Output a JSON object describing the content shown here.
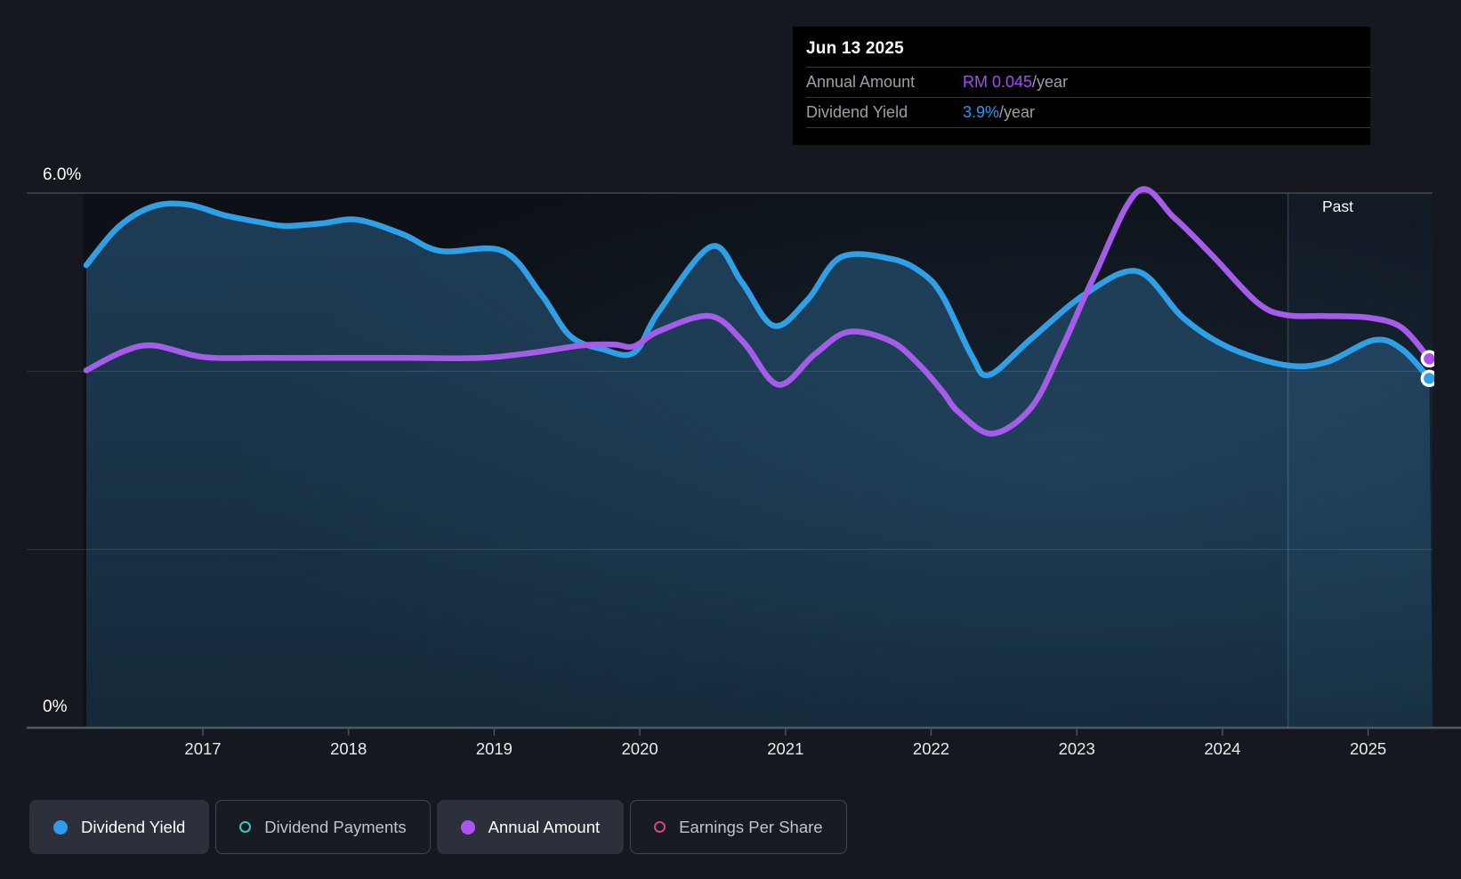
{
  "tooltip": {
    "date": "Jun 13 2025",
    "rows": [
      {
        "label": "Annual Amount",
        "value": "RM 0.045",
        "suffix": "/year"
      },
      {
        "label": "Dividend Yield",
        "value": "3.9%",
        "suffix": "/year"
      }
    ]
  },
  "chart": {
    "past_label": "Past",
    "y_top_label": "6.0%",
    "y_bottom_label": "0%"
  },
  "legend": {
    "items": [
      {
        "label": "Dividend Yield",
        "color": "#2e9ce8",
        "style": "filled-dot",
        "active": true
      },
      {
        "label": "Dividend Payments",
        "color": "#3fc8bc",
        "style": "outline-ring",
        "active": false
      },
      {
        "label": "Annual Amount",
        "color": "#ae54f0",
        "style": "filled-dot",
        "active": true
      },
      {
        "label": "Earnings Per Share",
        "color": "#d6467e",
        "style": "outline-ring",
        "active": false
      }
    ]
  },
  "colors": {
    "background": "#15181e",
    "plot_background": "#0d1117",
    "dividend_yield_line": "#2f9fe6",
    "annual_amount_line": "#a55ce8",
    "annual_amount_marker": "#b44df0",
    "area_fill_top": "#1e3d56",
    "area_fill_bottom": "#142939",
    "gridline_major": "#43474e",
    "gridline_minor": "rgba(255,255,255,0.13)",
    "axis_line": "#54585f",
    "tick_color": "#4c5058",
    "axis_text": "#e8eaed",
    "past_divider": "rgba(150,190,230,0.22)",
    "past_overlay": "rgba(96,160,215,0.055)",
    "glow": "rgba(70,135,190,0.14)"
  },
  "chart_data": {
    "type": "area",
    "title": "Dividend history (yield and annual amount over time)",
    "x_ticks": [
      2017,
      2018,
      2019,
      2020,
      2021,
      2022,
      2023,
      2024,
      2025
    ],
    "x_range": [
      2016.2,
      2025.44
    ],
    "y_axis": {
      "min": 0,
      "max": 6,
      "unit": "%",
      "gridlines_pct": [
        0,
        2,
        4,
        6
      ]
    },
    "grid": true,
    "legend_position": "bottom",
    "past_region_start": 2024.45,
    "series": [
      {
        "name": "Dividend Yield",
        "unit": "%",
        "current_label": "3.9%/year",
        "points": [
          [
            2016.2,
            5.19
          ],
          [
            2016.42,
            5.62
          ],
          [
            2016.66,
            5.85
          ],
          [
            2016.9,
            5.87
          ],
          [
            2017.15,
            5.75
          ],
          [
            2017.4,
            5.67
          ],
          [
            2017.57,
            5.63
          ],
          [
            2017.82,
            5.66
          ],
          [
            2018.06,
            5.7
          ],
          [
            2018.37,
            5.54
          ],
          [
            2018.63,
            5.35
          ],
          [
            2019.06,
            5.35
          ],
          [
            2019.32,
            4.87
          ],
          [
            2019.52,
            4.4
          ],
          [
            2019.74,
            4.25
          ],
          [
            2019.96,
            4.21
          ],
          [
            2020.13,
            4.67
          ],
          [
            2020.49,
            5.4
          ],
          [
            2020.7,
            5.0
          ],
          [
            2020.92,
            4.51
          ],
          [
            2021.15,
            4.8
          ],
          [
            2021.38,
            5.28
          ],
          [
            2021.73,
            5.26
          ],
          [
            2021.94,
            5.1
          ],
          [
            2022.08,
            4.84
          ],
          [
            2022.28,
            4.17
          ],
          [
            2022.4,
            3.96
          ],
          [
            2022.69,
            4.37
          ],
          [
            2023.06,
            4.87
          ],
          [
            2023.42,
            5.12
          ],
          [
            2023.73,
            4.6
          ],
          [
            2024.04,
            4.27
          ],
          [
            2024.43,
            4.07
          ],
          [
            2024.71,
            4.1
          ],
          [
            2025.04,
            4.35
          ],
          [
            2025.23,
            4.25
          ],
          [
            2025.42,
            3.92
          ]
        ]
      },
      {
        "name": "Annual Amount",
        "unit": "plotted on yield axis (%)",
        "current_label": "RM 0.045/year",
        "points": [
          [
            2016.2,
            4.01
          ],
          [
            2016.45,
            4.22
          ],
          [
            2016.66,
            4.29
          ],
          [
            2017.0,
            4.16
          ],
          [
            2017.4,
            4.15
          ],
          [
            2017.9,
            4.15
          ],
          [
            2018.4,
            4.15
          ],
          [
            2018.91,
            4.15
          ],
          [
            2019.27,
            4.21
          ],
          [
            2019.6,
            4.29
          ],
          [
            2019.82,
            4.3
          ],
          [
            2019.96,
            4.28
          ],
          [
            2020.13,
            4.45
          ],
          [
            2020.48,
            4.62
          ],
          [
            2020.71,
            4.33
          ],
          [
            2020.95,
            3.85
          ],
          [
            2021.2,
            4.19
          ],
          [
            2021.43,
            4.44
          ],
          [
            2021.72,
            4.34
          ],
          [
            2021.92,
            4.07
          ],
          [
            2022.08,
            3.77
          ],
          [
            2022.19,
            3.54
          ],
          [
            2022.42,
            3.3
          ],
          [
            2022.69,
            3.6
          ],
          [
            2022.9,
            4.27
          ],
          [
            2023.12,
            5.07
          ],
          [
            2023.42,
            6.02
          ],
          [
            2023.67,
            5.72
          ],
          [
            2023.93,
            5.3
          ],
          [
            2024.24,
            4.77
          ],
          [
            2024.44,
            4.63
          ],
          [
            2024.71,
            4.62
          ],
          [
            2025.01,
            4.6
          ],
          [
            2025.23,
            4.49
          ],
          [
            2025.42,
            4.14
          ]
        ]
      }
    ]
  }
}
